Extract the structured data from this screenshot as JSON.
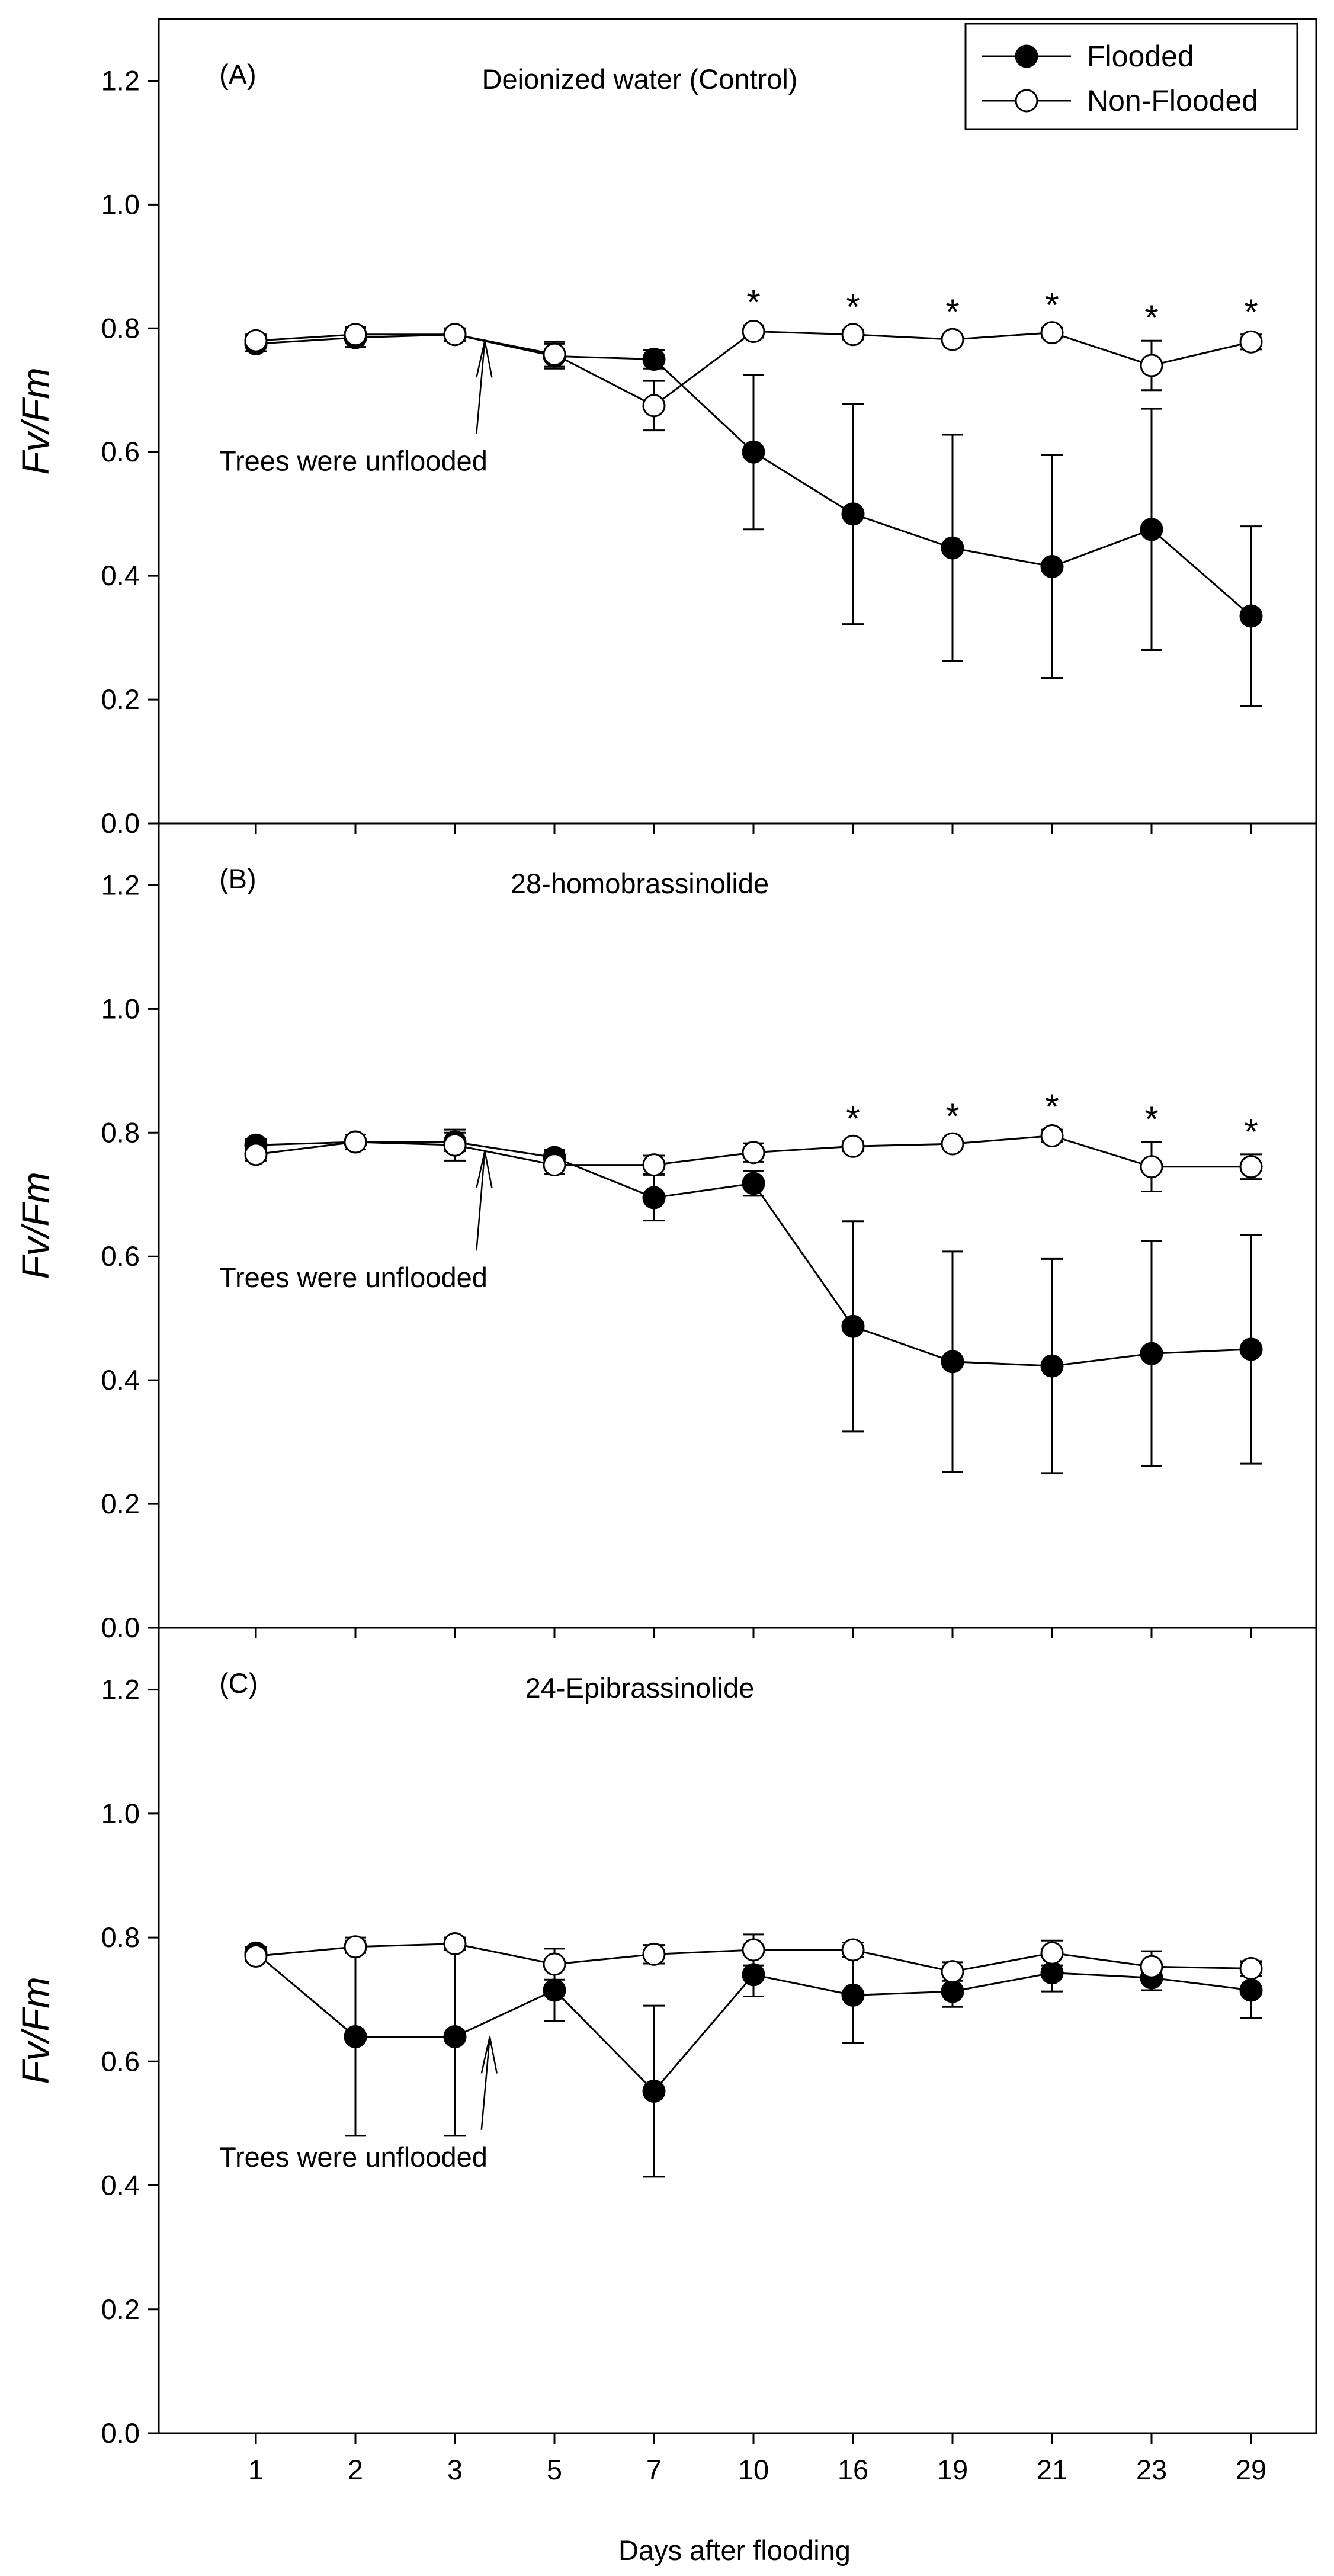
{
  "chart_data": {
    "type": "line",
    "figure_xlabel": "Days after flooding",
    "categories": [
      "1",
      "2",
      "3",
      "5",
      "7",
      "10",
      "16",
      "19",
      "21",
      "23",
      "29"
    ],
    "legend": {
      "placement": "top-right",
      "entries": [
        {
          "name": "Flooded",
          "marker": "filled-circle"
        },
        {
          "name": "Non-Flooded",
          "marker": "open-circle"
        }
      ]
    },
    "panels": [
      {
        "label": "(A)",
        "title": "Deionized water (Control)",
        "ylabel": "Fv/Fm",
        "ylim": [
          0,
          1.3
        ],
        "yticks": [
          "0.0",
          "0.2",
          "0.4",
          "0.6",
          "0.8",
          "1.0",
          "1.2"
        ],
        "annotation": "Trees were unflooded",
        "arrow_at": {
          "x_index": 2.3,
          "y": 0.78,
          "text_y": 0.62
        },
        "significance_marks": [
          "*",
          "*",
          "*",
          "*",
          "*",
          "*"
        ],
        "significance_indices": [
          5,
          6,
          7,
          8,
          9,
          10
        ],
        "series": [
          {
            "name": "Flooded",
            "values": [
              0.775,
              0.785,
              0.79,
              0.755,
              0.75,
              0.6,
              0.5,
              0.445,
              0.415,
              0.475,
              0.335
            ],
            "errors": [
              0.012,
              0.015,
              0.01,
              0.02,
              0.015,
              0.125,
              0.178,
              0.183,
              0.18,
              0.195,
              0.145
            ]
          },
          {
            "name": "Non-Flooded",
            "values": [
              0.78,
              0.79,
              0.79,
              0.758,
              0.675,
              0.795,
              0.79,
              0.782,
              0.793,
              0.74,
              0.778
            ],
            "errors": [
              0.01,
              0.012,
              0.01,
              0.02,
              0.04,
              0.01,
              0.008,
              0.008,
              0.008,
              0.04,
              0.012
            ]
          }
        ]
      },
      {
        "label": "(B)",
        "title": "28-homobrassinolide",
        "ylabel": "Fv/Fm",
        "ylim": [
          0,
          1.3
        ],
        "yticks": [
          "0.0",
          "0.2",
          "0.4",
          "0.6",
          "0.8",
          "1.0",
          "1.2"
        ],
        "annotation": "Trees were unflooded",
        "arrow_at": {
          "x_index": 2.3,
          "y": 0.77,
          "text_y": 0.6
        },
        "significance_marks": [
          "*",
          "*",
          "*",
          "*",
          "*"
        ],
        "significance_indices": [
          6,
          7,
          8,
          9,
          10
        ],
        "series": [
          {
            "name": "Flooded",
            "values": [
              0.78,
              0.785,
              0.785,
              0.76,
              0.695,
              0.718,
              0.487,
              0.43,
              0.423,
              0.443,
              0.45
            ],
            "errors": [
              0.01,
              0.012,
              0.015,
              0.012,
              0.037,
              0.02,
              0.17,
              0.178,
              0.173,
              0.182,
              0.185
            ]
          },
          {
            "name": "Non-Flooded",
            "values": [
              0.765,
              0.785,
              0.78,
              0.748,
              0.748,
              0.768,
              0.778,
              0.782,
              0.795,
              0.745,
              0.745
            ],
            "errors": [
              0.01,
              0.012,
              0.025,
              0.015,
              0.015,
              0.015,
              0.008,
              0.008,
              0.01,
              0.04,
              0.02
            ]
          }
        ]
      },
      {
        "label": "(C)",
        "title": "24-Epibrassinolide",
        "ylabel": "Fv/Fm",
        "ylim": [
          0,
          1.3
        ],
        "yticks": [
          "0.0",
          "0.2",
          "0.4",
          "0.6",
          "0.8",
          "1.0",
          "1.2"
        ],
        "annotation": "Trees were unflooded",
        "arrow_at": {
          "x_index": 2.35,
          "y": 0.64,
          "text_y": 0.48
        },
        "significance_marks": [],
        "significance_indices": [],
        "series": [
          {
            "name": "Flooded",
            "values": [
              0.775,
              0.64,
              0.64,
              0.715,
              0.552,
              0.74,
              0.707,
              0.713,
              0.743,
              0.735,
              0.715
            ],
            "errors": [
              0.01,
              0.16,
              0.16,
              0.05,
              0.138,
              0.035,
              0.077,
              0.025,
              0.03,
              0.02,
              0.045
            ]
          },
          {
            "name": "Non-Flooded",
            "values": [
              0.77,
              0.785,
              0.79,
              0.757,
              0.773,
              0.78,
              0.78,
              0.745,
              0.775,
              0.753,
              0.75
            ],
            "errors": [
              0.008,
              0.01,
              0.01,
              0.025,
              0.015,
              0.025,
              0.012,
              0.015,
              0.02,
              0.025,
              0.012
            ]
          }
        ]
      }
    ]
  }
}
